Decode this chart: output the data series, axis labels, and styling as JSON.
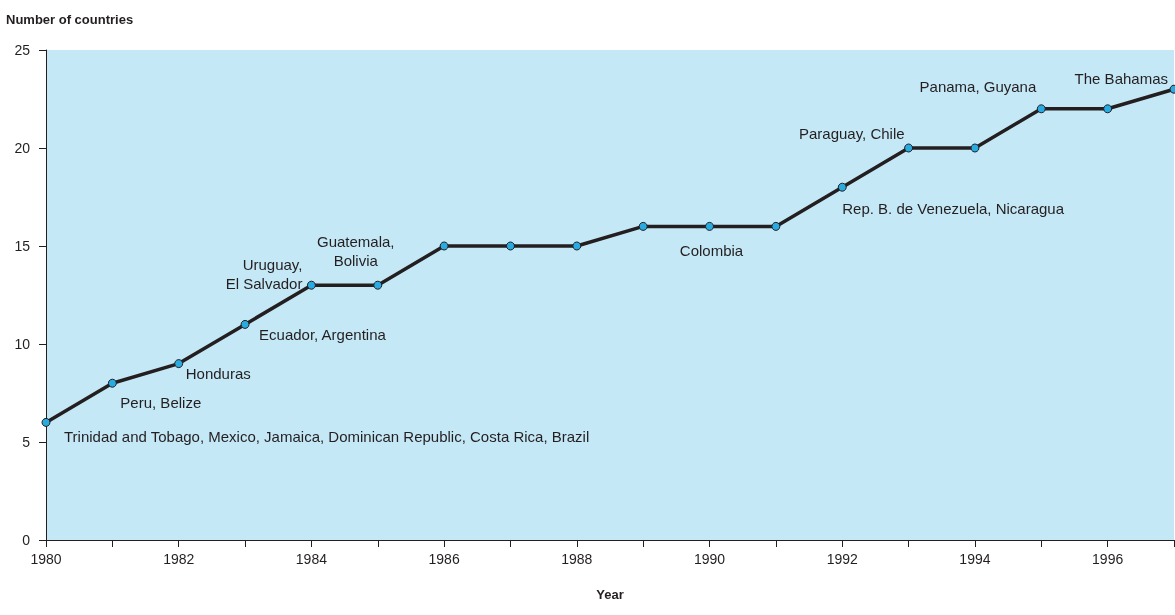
{
  "chart_data": {
    "type": "line",
    "xlabel": "Year",
    "ylabel": "Number of countries",
    "x": [
      1980,
      1981,
      1982,
      1983,
      1984,
      1985,
      1986,
      1987,
      1988,
      1989,
      1990,
      1991,
      1992,
      1993,
      1994,
      1995,
      1996,
      1997
    ],
    "series": [
      {
        "color": "#231f20",
        "values": [
          6,
          8,
          9,
          11,
          13,
          13,
          15,
          15,
          15,
          16,
          16,
          16,
          18,
          20,
          20,
          22,
          22,
          23
        ]
      }
    ],
    "xlim": [
      1980,
      1997
    ],
    "xticks": [
      1980,
      {
        "value": 1981,
        "label": null
      },
      1982,
      {
        "value": 1983,
        "label": null
      },
      1984,
      {
        "value": 1985,
        "label": null
      },
      1986,
      {
        "value": 1987,
        "label": null
      },
      1988,
      {
        "value": 1989,
        "label": null
      },
      1990,
      {
        "value": 1991,
        "label": null
      },
      1992,
      {
        "value": 1993,
        "label": null
      },
      1994,
      {
        "value": 1995,
        "label": null
      },
      1996,
      {
        "value": 1997,
        "label": null
      }
    ],
    "ylim": [
      0,
      25
    ],
    "yticks": [
      0,
      5,
      10,
      15,
      20,
      25
    ],
    "grid": false,
    "marker": "circle",
    "line_style": "solid",
    "annotations": [
      {
        "text": "Trinidad and Tobago, Mexico, Jamaica, Dominican Republic, Costa Rica, Brazil",
        "x": 1980,
        "y": 6
      },
      {
        "text": "Peru, Belize",
        "x": 1981,
        "y": 8
      },
      {
        "text": "Honduras",
        "x": 1982,
        "y": 9
      },
      {
        "text": "Ecuador, Argentina",
        "x": 1983,
        "y": 11
      },
      {
        "text": "Uruguay,\nEl Salvador",
        "x": 1984,
        "y": 13
      },
      {
        "text": "Guatemala,\nBolivia",
        "x": 1985,
        "y": 13
      },
      {
        "text": "Colombia",
        "x": 1990,
        "y": 16
      },
      {
        "text": "Paraguay, Chile",
        "x": 1993,
        "y": 20
      },
      {
        "text": "Rep. B. de Venezuela, Nicaragua",
        "x": 1992,
        "y": 18
      },
      {
        "text": "Panama, Guyana",
        "x": 1995,
        "y": 22
      },
      {
        "text": "The Bahamas",
        "x": 1997,
        "y": 23
      }
    ]
  }
}
